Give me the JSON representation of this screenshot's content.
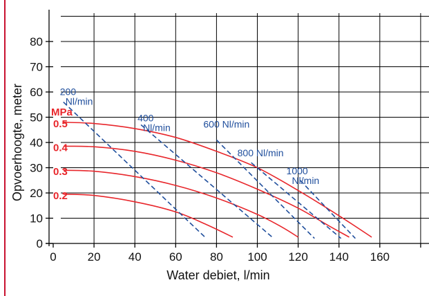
{
  "chart_data": {
    "type": "line",
    "title": "",
    "xlabel": "Water debiet, l/min",
    "ylabel": "Opvoerhoogte, meter",
    "xlim": [
      0,
      180
    ],
    "ylim": [
      0,
      90
    ],
    "x_ticks": [
      0,
      20,
      40,
      60,
      80,
      100,
      120,
      140,
      160
    ],
    "y_ticks": [
      0,
      10,
      20,
      30,
      40,
      50,
      60,
      70,
      80
    ],
    "grid": true,
    "pressure_unit": "MPa",
    "pressure_series": [
      {
        "name": "0.5",
        "color": "#e8262b",
        "points": [
          [
            5,
            48
          ],
          [
            20,
            47.5
          ],
          [
            40,
            45.5
          ],
          [
            60,
            42
          ],
          [
            80,
            36.5
          ],
          [
            100,
            30
          ],
          [
            120,
            21
          ],
          [
            140,
            11
          ],
          [
            156,
            2.5
          ]
        ]
      },
      {
        "name": "0.4",
        "color": "#e8262b",
        "points": [
          [
            5,
            38.5
          ],
          [
            20,
            38.3
          ],
          [
            40,
            36.5
          ],
          [
            60,
            33
          ],
          [
            80,
            28
          ],
          [
            100,
            21.5
          ],
          [
            120,
            14
          ],
          [
            135,
            7
          ],
          [
            145,
            2.5
          ]
        ]
      },
      {
        "name": "0.3",
        "color": "#e8262b",
        "points": [
          [
            5,
            29
          ],
          [
            20,
            28.6
          ],
          [
            40,
            26.5
          ],
          [
            60,
            23
          ],
          [
            80,
            18
          ],
          [
            100,
            11.5
          ],
          [
            112,
            6.5
          ],
          [
            120,
            2.5
          ]
        ]
      },
      {
        "name": "0.2",
        "color": "#e8262b",
        "points": [
          [
            5,
            19.5
          ],
          [
            20,
            19
          ],
          [
            40,
            16.5
          ],
          [
            60,
            12.5
          ],
          [
            75,
            7.5
          ],
          [
            88,
            2.5
          ]
        ]
      }
    ],
    "airflow_series": [
      {
        "name": "200 Nl/min",
        "lines": [
          "200",
          "Nl/min"
        ],
        "color": "#1f4e9c",
        "points": [
          [
            5,
            56
          ],
          [
            75,
            2
          ]
        ]
      },
      {
        "name": "400 Nl/min",
        "lines": [
          "400",
          "Nl/min"
        ],
        "color": "#1f4e9c",
        "points": [
          [
            43,
            47
          ],
          [
            108,
            2
          ]
        ]
      },
      {
        "name": "600 Nl/min",
        "lines": [
          "600 Nl/min"
        ],
        "color": "#1f4e9c",
        "points": [
          [
            80,
            41
          ],
          [
            128,
            2
          ]
        ]
      },
      {
        "name": "800 Nl/min",
        "lines": [
          "800 Nl/min"
        ],
        "color": "#1f4e9c",
        "points": [
          [
            97,
            32
          ],
          [
            141,
            2
          ]
        ]
      },
      {
        "name": "1000 Nl/min",
        "lines": [
          "1000",
          "Nl/min"
        ],
        "color": "#1f4e9c",
        "points": [
          [
            121,
            25
          ],
          [
            148,
            2
          ]
        ]
      }
    ]
  }
}
